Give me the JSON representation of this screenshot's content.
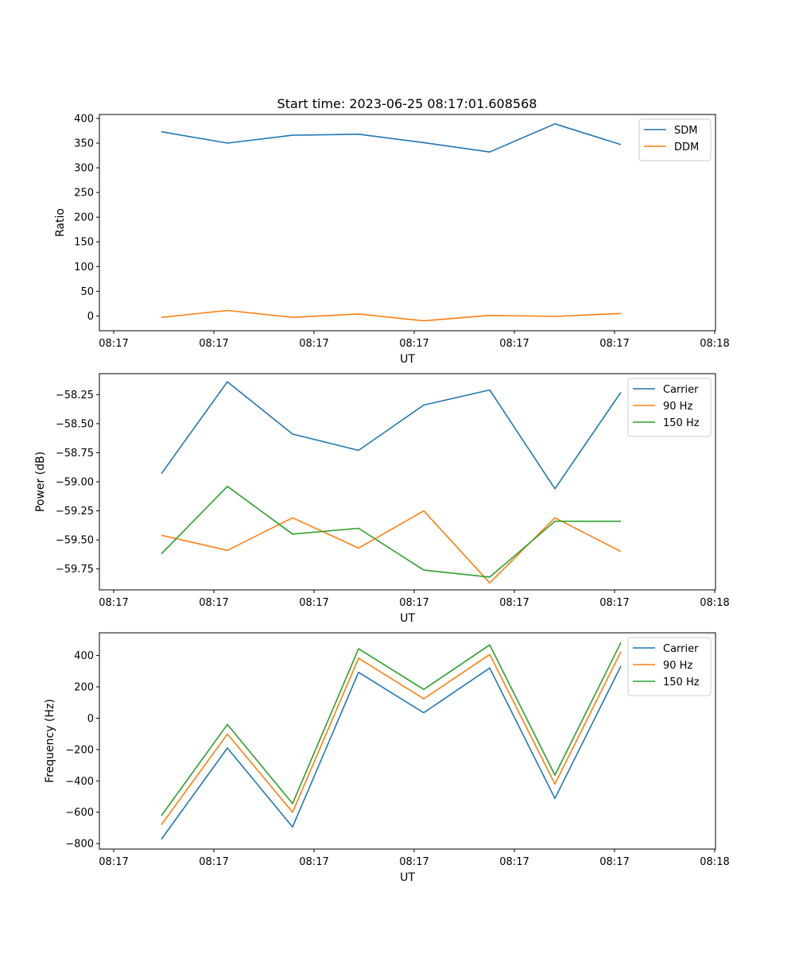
{
  "title": "Start time: 2023-06-25 08:17:01.608568",
  "chart_data": [
    {
      "type": "line",
      "xlabel": "UT",
      "ylabel": "Ratio",
      "x_tick_labels": [
        "08:17",
        "08:17",
        "08:17",
        "08:17",
        "08:17",
        "08:17",
        "08:18"
      ],
      "y_ticks": [
        0,
        50,
        100,
        150,
        200,
        250,
        300,
        350,
        400
      ],
      "y_tick_labels": [
        "0",
        "50",
        "100",
        "150",
        "200",
        "250",
        "300",
        "350",
        "400"
      ],
      "ylim": [
        -30,
        408
      ],
      "legend_position": "top-right",
      "series": [
        {
          "name": "SDM",
          "color": "#1f77b4",
          "values": [
            373,
            350,
            366,
            368,
            351,
            332,
            389,
            347
          ]
        },
        {
          "name": "DDM",
          "color": "#ff7f0e",
          "values": [
            -3,
            11,
            -3,
            4,
            -10,
            1,
            -1,
            5
          ]
        }
      ]
    },
    {
      "type": "line",
      "xlabel": "UT",
      "ylabel": "Power (dB)",
      "x_tick_labels": [
        "08:17",
        "08:17",
        "08:17",
        "08:17",
        "08:17",
        "08:17",
        "08:18"
      ],
      "y_ticks": [
        -58.25,
        -58.5,
        -58.75,
        -59.0,
        -59.25,
        -59.5,
        -59.75
      ],
      "y_tick_labels": [
        "−58.25",
        "−58.50",
        "−58.75",
        "−59.00",
        "−59.25",
        "−59.50",
        "−59.75"
      ],
      "ylim": [
        -59.93,
        -58.07
      ],
      "legend_position": "top-right",
      "series": [
        {
          "name": "Carrier",
          "color": "#1f77b4",
          "values": [
            -58.93,
            -58.14,
            -58.59,
            -58.73,
            -58.34,
            -58.21,
            -59.06,
            -58.23
          ]
        },
        {
          "name": "90 Hz",
          "color": "#ff7f0e",
          "values": [
            -59.46,
            -59.59,
            -59.31,
            -59.57,
            -59.25,
            -59.87,
            -59.31,
            -59.6
          ]
        },
        {
          "name": "150 Hz",
          "color": "#2ca02c",
          "values": [
            -59.62,
            -59.04,
            -59.45,
            -59.4,
            -59.76,
            -59.82,
            -59.34,
            -59.34
          ]
        }
      ]
    },
    {
      "type": "line",
      "xlabel": "UT",
      "ylabel": "Frequency (Hz)",
      "x_tick_labels": [
        "08:17",
        "08:17",
        "08:17",
        "08:17",
        "08:17",
        "08:17",
        "08:18"
      ],
      "y_ticks": [
        -800,
        -600,
        -400,
        -200,
        0,
        200,
        400
      ],
      "y_tick_labels": [
        "−800",
        "−600",
        "−400",
        "−200",
        "0",
        "200",
        "400"
      ],
      "ylim": [
        -835,
        545
      ],
      "legend_position": "top-right",
      "series": [
        {
          "name": "Carrier",
          "color": "#1f77b4",
          "values": [
            -772,
            -190,
            -694,
            293,
            35,
            320,
            -512,
            333
          ]
        },
        {
          "name": "90 Hz",
          "color": "#ff7f0e",
          "values": [
            -680,
            -101,
            -600,
            383,
            124,
            407,
            -420,
            424
          ]
        },
        {
          "name": "150 Hz",
          "color": "#2ca02c",
          "values": [
            -622,
            -40,
            -545,
            443,
            184,
            468,
            -363,
            483
          ]
        }
      ]
    }
  ]
}
